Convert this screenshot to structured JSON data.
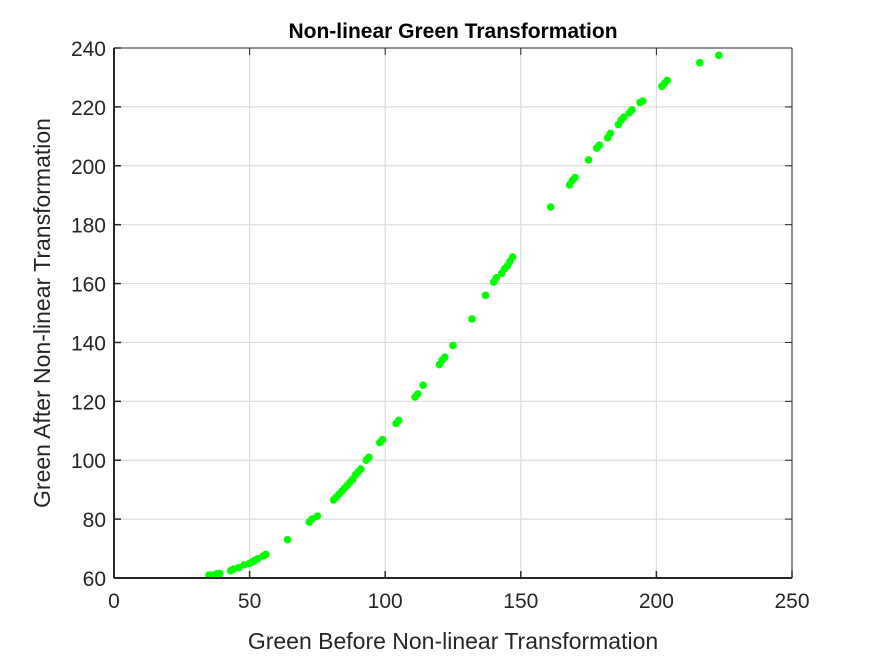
{
  "chart_data": {
    "type": "scatter",
    "title": "Non-linear Green Transformation",
    "xlabel": "Green Before Non-linear Transformation",
    "ylabel": "Green After Non-linear Transformation",
    "xlim": [
      0,
      250
    ],
    "ylim": [
      60,
      240
    ],
    "xticks": [
      0,
      50,
      100,
      150,
      200,
      250
    ],
    "yticks": [
      60,
      80,
      100,
      120,
      140,
      160,
      180,
      200,
      220,
      240
    ],
    "grid": true,
    "colors": {
      "marker": "#00ff00",
      "axis": "#262626",
      "grid": "#dcdcdc",
      "background": "#ffffff"
    },
    "series": [
      {
        "name": "green",
        "x": [
          35,
          36,
          37,
          38,
          39,
          43,
          44,
          46,
          48,
          50,
          51,
          52,
          53,
          55,
          56,
          64,
          72,
          73,
          75,
          81,
          82,
          83,
          84,
          85,
          86,
          87,
          88,
          89,
          90,
          91,
          93,
          94,
          98,
          99,
          104,
          105,
          111,
          112,
          114,
          120,
          121,
          122,
          125,
          132,
          137,
          140,
          141,
          143,
          144,
          145,
          146,
          147,
          161,
          168,
          169,
          170,
          175,
          178,
          179,
          182,
          183,
          186,
          187,
          188,
          190,
          191,
          194,
          195,
          202,
          203,
          204,
          216,
          223
        ],
        "y": [
          61,
          61,
          61,
          61.5,
          61.5,
          62.5,
          63,
          63.5,
          64.5,
          65,
          65.5,
          66,
          66.5,
          67.5,
          68,
          73,
          79,
          80,
          81,
          86.5,
          87.5,
          88.5,
          89.5,
          90.5,
          91.5,
          92.5,
          93.5,
          95,
          96,
          97,
          100,
          101,
          106,
          107,
          112.5,
          113.5,
          121.5,
          122.5,
          125.5,
          132.5,
          134,
          135,
          139,
          148,
          156,
          160.5,
          162,
          163.5,
          165,
          166,
          167.5,
          169,
          186,
          193.5,
          195,
          196,
          202,
          206,
          207,
          209.5,
          211,
          214,
          215.5,
          216.5,
          218,
          219,
          221.5,
          222,
          227,
          228,
          229,
          235,
          237.5
        ]
      }
    ]
  }
}
